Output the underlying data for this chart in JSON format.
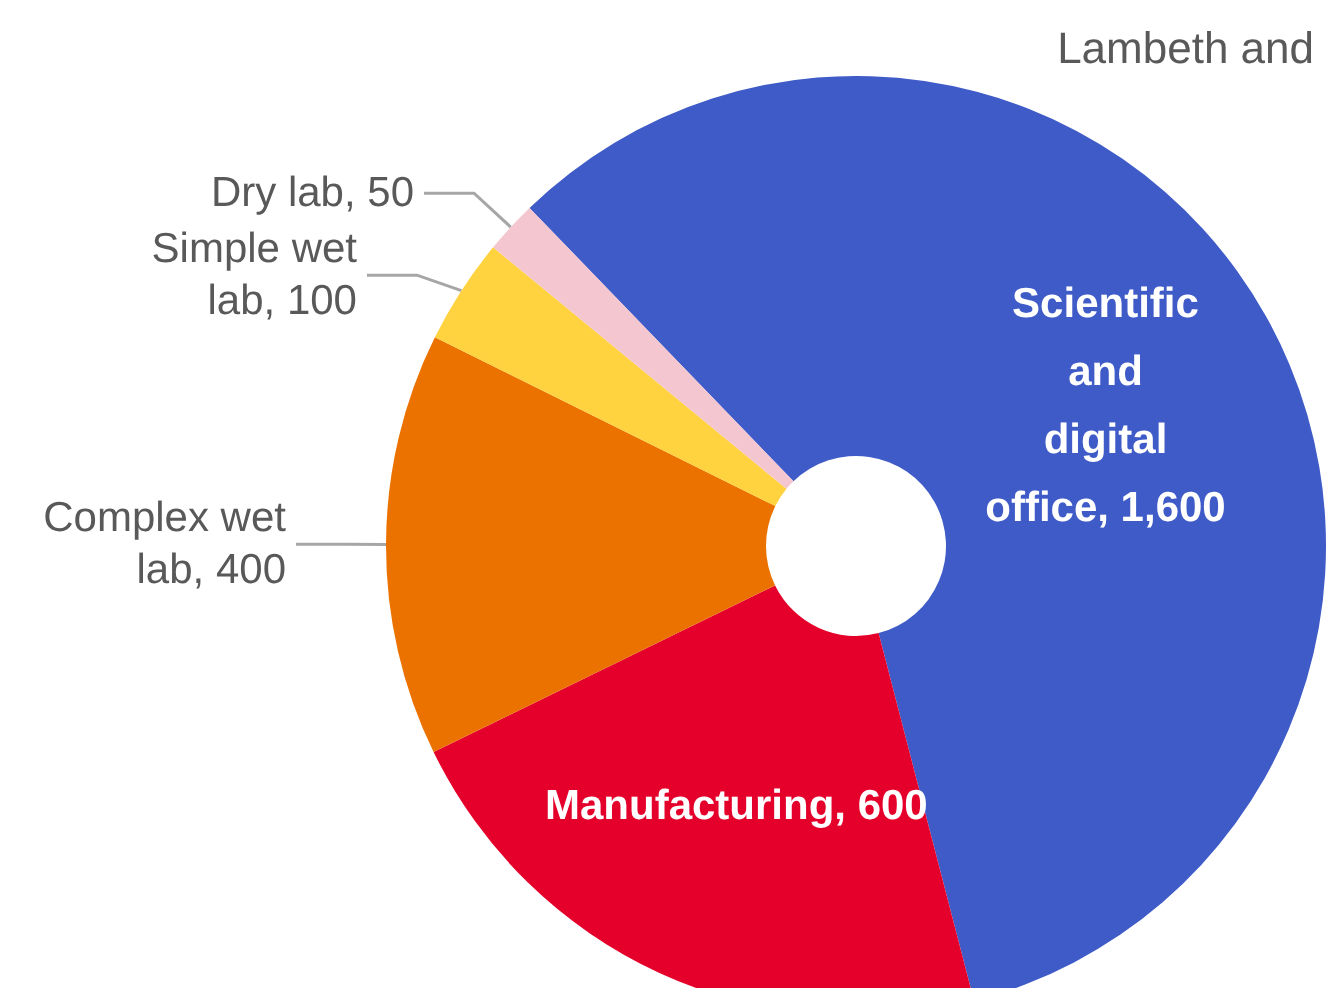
{
  "chart_data": {
    "type": "donut",
    "title": "Lambeth and",
    "categories": [
      "Scientific and digital office",
      "Manufacturing",
      "Complex wet lab",
      "Simple wet lab",
      "Dry lab"
    ],
    "values": [
      1600,
      600,
      400,
      100,
      50
    ],
    "value_labels": [
      "1,600",
      "600",
      "400",
      "100",
      "50"
    ],
    "colors": [
      "#3f5bc8",
      "#e4002b",
      "#ec7200",
      "#ffd23f",
      "#f4c6d0"
    ],
    "legend": false
  }
}
